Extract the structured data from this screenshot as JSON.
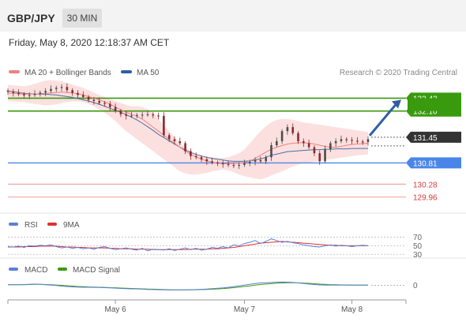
{
  "header": {
    "symbol": "GBP/JPY",
    "timeframe": "30 MIN",
    "datetime": "Friday, May 8, 2020 12:18:37 AM CET"
  },
  "legend": {
    "ma20": "MA 20 + Bollinger Bands",
    "ma50": "MA 50",
    "credit": "Research © 2020 Trading Central"
  },
  "colors": {
    "candle_up": "#4d4d4d",
    "candle_down": "#8b2a2a",
    "ma20": "#f08080",
    "ma50": "#4a6fa5",
    "bollinger_fill": "#fbd6d6",
    "resistance": "#3a9a0e",
    "support_blue": "#4a86e8",
    "support_red": "#f4a6a6",
    "current": "#333333",
    "arrow": "#2f5ea6",
    "rsi": "#5b7fd6",
    "rsi_ma": "#e03030",
    "macd": "#5b7fd6",
    "macd_signal": "#3a9a0e"
  },
  "chart_data": [
    {
      "type": "candlestick",
      "title": "GBP/JPY",
      "x_labels": [
        "May 6",
        "May 7",
        "May 8"
      ],
      "ylim": [
        129.6,
        132.9
      ],
      "levels": [
        {
          "value": 132.42,
          "label": "132.42",
          "kind": "resistance"
        },
        {
          "value": 132.1,
          "label": "132.10",
          "kind": "resistance"
        },
        {
          "value": 131.45,
          "label": "131.45",
          "kind": "current"
        },
        {
          "value": 130.81,
          "label": "130.81",
          "kind": "support"
        },
        {
          "value": 130.28,
          "label": "130.28",
          "kind": "support-weak"
        },
        {
          "value": 129.96,
          "label": "129.96",
          "kind": "support-weak"
        }
      ],
      "close_series": [
        132.58,
        132.55,
        132.52,
        132.49,
        132.5,
        132.53,
        132.56,
        132.6,
        132.65,
        132.68,
        132.7,
        132.62,
        132.55,
        132.5,
        132.45,
        132.38,
        132.35,
        132.3,
        132.28,
        132.2,
        132.1,
        132.02,
        131.98,
        131.99,
        132.0,
        132.01,
        132.02,
        131.99,
        131.98,
        131.5,
        131.4,
        131.35,
        131.3,
        131.1,
        130.98,
        130.95,
        130.9,
        130.85,
        130.82,
        130.8,
        130.78,
        130.76,
        130.75,
        130.76,
        130.8,
        130.84,
        130.88,
        130.85,
        130.95,
        131.25,
        131.35,
        131.6,
        131.7,
        131.55,
        131.35,
        131.3,
        131.2,
        131.05,
        130.85,
        131.15,
        131.3,
        131.35,
        131.4,
        131.38,
        131.36,
        131.34,
        131.33,
        131.4
      ],
      "ma20": [
        132.55,
        132.54,
        132.53,
        132.52,
        132.52,
        132.52,
        132.53,
        132.54,
        132.55,
        132.56,
        132.57,
        132.56,
        132.55,
        132.53,
        132.5,
        132.46,
        132.42,
        132.38,
        132.33,
        132.27,
        132.2,
        132.13,
        132.07,
        132.02,
        131.97,
        131.9,
        131.8,
        131.7,
        131.6,
        131.5,
        131.4,
        131.3,
        131.2,
        131.1,
        131.02,
        130.96,
        130.9,
        130.86,
        130.83,
        130.8,
        130.79,
        130.79,
        130.8,
        130.8,
        130.82,
        130.86,
        130.92,
        131.0,
        131.08,
        131.15,
        131.2,
        131.24,
        131.28,
        131.3,
        131.31,
        131.31,
        131.3,
        131.28,
        131.25,
        131.22,
        131.2,
        131.2,
        131.22,
        131.25,
        131.27,
        131.28,
        131.29,
        131.3
      ],
      "ma50": [
        132.6,
        132.58,
        132.56,
        132.54,
        132.53,
        132.52,
        132.52,
        132.52,
        132.51,
        132.5,
        132.48,
        132.46,
        132.44,
        132.41,
        132.38,
        132.35,
        132.31,
        132.27,
        132.22,
        132.17,
        132.12,
        132.07,
        132.01,
        131.95,
        131.88,
        131.8,
        131.71,
        131.62,
        131.52,
        131.44,
        131.36,
        131.28,
        131.2,
        131.13,
        131.07,
        131.02,
        130.98,
        130.95,
        130.92,
        130.9,
        130.88,
        130.86,
        130.85,
        130.85,
        130.85,
        130.86,
        130.88,
        130.91,
        130.95,
        131.0,
        131.03,
        131.06,
        131.09,
        131.1,
        131.11,
        131.12,
        131.13,
        131.14,
        131.14,
        131.15,
        131.15,
        131.16,
        131.16,
        131.16,
        131.17,
        131.17,
        131.17,
        131.17
      ],
      "bollinger_upper": [
        132.75,
        132.74,
        132.73,
        132.72,
        132.74,
        132.78,
        132.82,
        132.86,
        132.87,
        132.86,
        132.84,
        132.8,
        132.76,
        132.72,
        132.68,
        132.62,
        132.56,
        132.5,
        132.45,
        132.4,
        132.35,
        132.3,
        132.25,
        132.22,
        132.22,
        132.2,
        132.15,
        132.05,
        131.9,
        131.75,
        131.6,
        131.45,
        131.3,
        131.2,
        131.1,
        131.02,
        130.98,
        130.96,
        130.95,
        130.94,
        130.93,
        130.95,
        131.0,
        131.05,
        131.15,
        131.3,
        131.45,
        131.6,
        131.72,
        131.82,
        131.88,
        131.9,
        131.9,
        131.88,
        131.85,
        131.82,
        131.8,
        131.78,
        131.76,
        131.74,
        131.72,
        131.7,
        131.68,
        131.66,
        131.64,
        131.62,
        131.6,
        131.58
      ],
      "bollinger_lower": [
        132.35,
        132.34,
        132.33,
        132.32,
        132.3,
        132.28,
        132.26,
        132.24,
        132.25,
        132.27,
        132.3,
        132.32,
        132.34,
        132.34,
        132.32,
        132.28,
        132.22,
        132.14,
        132.06,
        131.96,
        131.85,
        131.72,
        131.6,
        131.5,
        131.4,
        131.3,
        131.2,
        131.1,
        131.0,
        130.9,
        130.8,
        130.7,
        130.6,
        130.55,
        130.52,
        130.52,
        130.54,
        130.56,
        130.6,
        130.62,
        130.65,
        130.62,
        130.58,
        130.52,
        130.48,
        130.45,
        130.42,
        130.4,
        130.44,
        130.5,
        130.55,
        130.6,
        130.66,
        130.72,
        130.77,
        130.8,
        130.82,
        130.84,
        130.86,
        130.88,
        130.9,
        130.92,
        130.94,
        130.96,
        130.98,
        131.0,
        131.01,
        131.02
      ]
    },
    {
      "type": "line",
      "title": "RSI",
      "legend": [
        "RSI",
        "9MA"
      ],
      "y_ticks": [
        70,
        50,
        30
      ],
      "ylim": [
        25,
        80
      ],
      "series": [
        {
          "name": "RSI",
          "values": [
            48,
            47,
            49,
            46,
            50,
            49,
            51,
            50,
            52,
            48,
            45,
            47,
            44,
            46,
            43,
            45,
            42,
            46,
            48,
            44,
            41,
            43,
            45,
            42,
            40,
            44,
            38,
            42,
            41,
            40,
            43,
            39,
            42,
            45,
            41,
            44,
            40,
            42,
            46,
            44,
            48,
            45,
            52,
            50,
            55,
            58,
            62,
            55,
            60,
            66,
            62,
            58,
            60,
            57,
            55,
            52,
            50,
            48,
            47,
            50,
            52,
            49,
            51,
            50,
            48,
            50,
            51,
            50
          ]
        },
        {
          "name": "9MA",
          "values": [
            47,
            47,
            47,
            48,
            48,
            48,
            49,
            49,
            49,
            49,
            48,
            47,
            47,
            46,
            46,
            45,
            45,
            45,
            45,
            44,
            44,
            43,
            43,
            43,
            42,
            42,
            42,
            41,
            41,
            41,
            41,
            41,
            41,
            41,
            42,
            42,
            42,
            42,
            43,
            43,
            44,
            45,
            46,
            48,
            50,
            52,
            54,
            56,
            57,
            58,
            59,
            60,
            59,
            58,
            57,
            56,
            55,
            54,
            53,
            52,
            51,
            51,
            50,
            50,
            50,
            50,
            50,
            50
          ]
        }
      ]
    },
    {
      "type": "line",
      "title": "MACD",
      "legend": [
        "MACD",
        "MACD Signal"
      ],
      "y_ticks": [
        0
      ],
      "ylim": [
        -1,
        1
      ],
      "series": [
        {
          "name": "MACD",
          "values": [
            0.05,
            0.04,
            0.05,
            0.06,
            0.08,
            0.1,
            0.08,
            0.05,
            0.02,
            -0.02,
            -0.06,
            -0.1,
            -0.12,
            -0.14,
            -0.15,
            -0.15,
            -0.16,
            -0.17,
            -0.18,
            -0.2,
            -0.22,
            -0.24,
            -0.26,
            -0.27,
            -0.28,
            -0.3,
            -0.32,
            -0.33,
            -0.34,
            -0.35,
            -0.36,
            -0.36,
            -0.36,
            -0.35,
            -0.34,
            -0.33,
            -0.31,
            -0.29,
            -0.26,
            -0.23,
            -0.2,
            -0.16,
            -0.1,
            -0.04,
            0.02,
            0.08,
            0.14,
            0.18,
            0.2,
            0.22,
            0.24,
            0.25,
            0.24,
            0.22,
            0.18,
            0.14,
            0.1,
            0.06,
            0.03,
            0.02,
            0.02,
            0.01,
            0.02,
            0.02,
            0.01,
            0.01,
            0.01,
            0.01
          ]
        },
        {
          "name": "MACD Signal",
          "values": [
            0.04,
            0.04,
            0.04,
            0.05,
            0.06,
            0.07,
            0.07,
            0.06,
            0.04,
            0.02,
            0.0,
            -0.03,
            -0.06,
            -0.09,
            -0.11,
            -0.13,
            -0.14,
            -0.15,
            -0.16,
            -0.18,
            -0.19,
            -0.21,
            -0.23,
            -0.24,
            -0.26,
            -0.27,
            -0.29,
            -0.3,
            -0.31,
            -0.33,
            -0.34,
            -0.35,
            -0.35,
            -0.35,
            -0.35,
            -0.34,
            -0.33,
            -0.32,
            -0.3,
            -0.28,
            -0.25,
            -0.22,
            -0.18,
            -0.14,
            -0.09,
            -0.04,
            0.01,
            0.06,
            0.1,
            0.13,
            0.16,
            0.18,
            0.2,
            0.2,
            0.19,
            0.17,
            0.15,
            0.12,
            0.09,
            0.07,
            0.05,
            0.04,
            0.03,
            0.03,
            0.02,
            0.02,
            0.02,
            0.02
          ]
        }
      ]
    }
  ]
}
